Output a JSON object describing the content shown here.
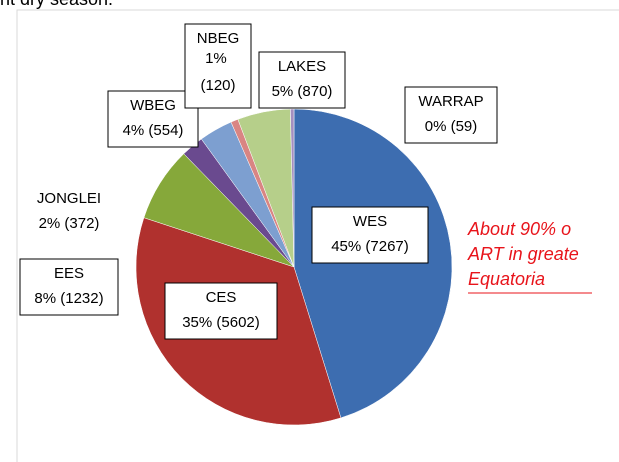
{
  "header_text": "nt dry season.",
  "chart_data": {
    "type": "pie",
    "categories": [
      "WES",
      "CES",
      "EES",
      "JONGLEI",
      "WBEG",
      "NBEG",
      "LAKES",
      "WARRAP"
    ],
    "values": [
      7267,
      5602,
      1232,
      372,
      554,
      120,
      870,
      59
    ],
    "value_labels": [
      "45% (7267)",
      "35% (5602)",
      "8% (1232)",
      "2% (372)",
      "4% (554)",
      "1% (120)",
      "5% (870)",
      "0% (59)"
    ],
    "colors": [
      "#3d6db0",
      "#b0312e",
      "#86a83a",
      "#6a4a8f",
      "#7d9fd0",
      "#d98583",
      "#b6cf8a",
      "#a48fc0"
    ],
    "annotation": [
      "About 90% o",
      "ART in greate",
      "Equatoria"
    ]
  }
}
